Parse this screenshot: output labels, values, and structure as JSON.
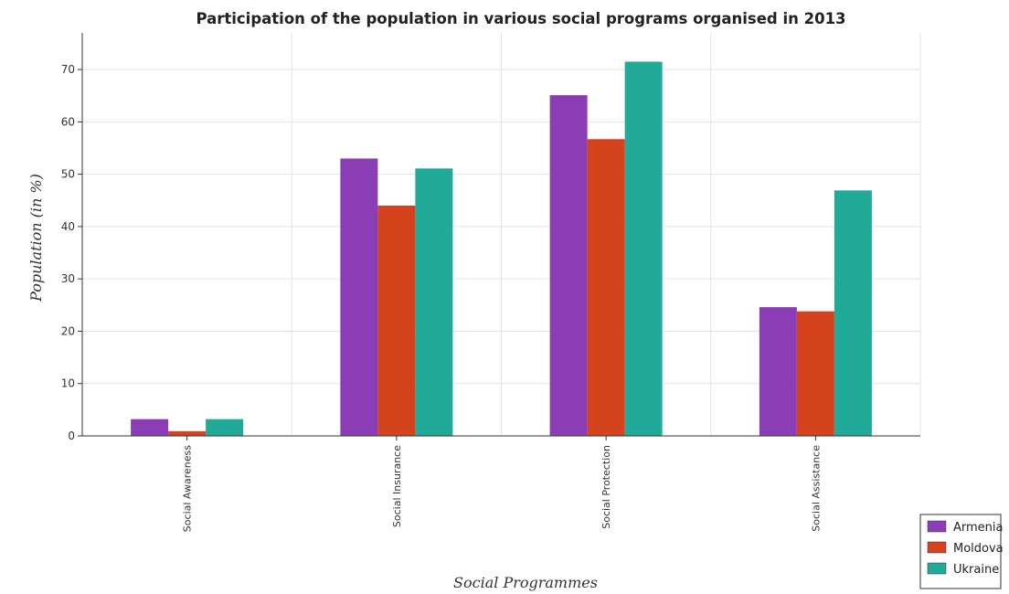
{
  "chart_data": {
    "type": "bar",
    "title": "Participation of the population in various social programs organised in 2013",
    "xlabel": "Social Programmes",
    "ylabel": "Population (in %)",
    "ylim": [
      0,
      77
    ],
    "yticks": [
      0,
      10,
      20,
      30,
      40,
      50,
      60,
      70
    ],
    "grid": true,
    "legend_position": "bottom-right",
    "categories": [
      "Social Awareness",
      "Social Insurance",
      "Social Protection",
      "Social Assistance"
    ],
    "series": [
      {
        "name": "Armenia",
        "color": "#8b3db5",
        "values": [
          3.2,
          53.0,
          65.1,
          24.6
        ]
      },
      {
        "name": "Moldova",
        "color": "#d4421e",
        "values": [
          0.9,
          44.0,
          56.7,
          23.8
        ]
      },
      {
        "name": "Ukraine",
        "color": "#22aa99",
        "values": [
          3.2,
          51.1,
          71.5,
          46.9
        ]
      }
    ]
  }
}
